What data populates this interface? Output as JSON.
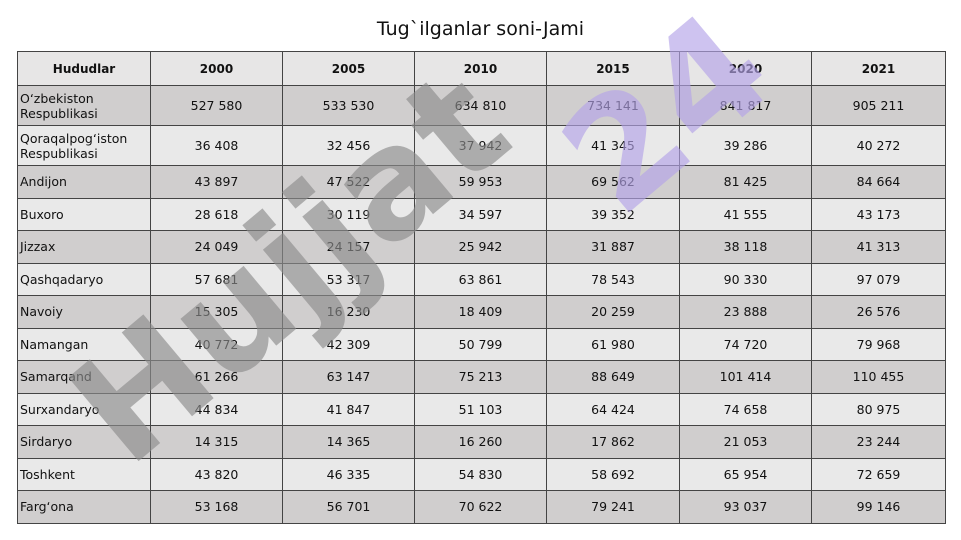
{
  "title": "Tug`ilganlar soni-Jami",
  "table": {
    "headers": [
      "Hududlar",
      "2000",
      "2005",
      "2010",
      "2015",
      "2020",
      "2021"
    ],
    "rows": [
      {
        "name": "O‘zbekiston Respublikasi",
        "values": [
          "527 580",
          "533 530",
          "634 810",
          "734 141",
          "841 817",
          "905 211"
        ]
      },
      {
        "name": "Qoraqalpog‘iston Respublikasi",
        "values": [
          "36 408",
          "32 456",
          "37 942",
          "41 345",
          "39 286",
          "40 272"
        ]
      },
      {
        "name": "Andijon",
        "values": [
          "43 897",
          "47 522",
          "59 953",
          "69 562",
          "81 425",
          "84 664"
        ]
      },
      {
        "name": "Buxoro",
        "values": [
          "28 618",
          "30 119",
          "34 597",
          "39 352",
          "41 555",
          "43 173"
        ]
      },
      {
        "name": "Jizzax",
        "values": [
          "24 049",
          "24 157",
          "25 942",
          "31 887",
          "38 118",
          "41 313"
        ]
      },
      {
        "name": "Qashqadaryo",
        "values": [
          "57 681",
          "53 317",
          "63 861",
          "78 543",
          "90 330",
          "97 079"
        ]
      },
      {
        "name": "Navoiy",
        "values": [
          "15 305",
          "16 230",
          "18 409",
          "20 259",
          "23 888",
          "26 576"
        ]
      },
      {
        "name": "Namangan",
        "values": [
          "40 772",
          "42 309",
          "50 799",
          "61 980",
          "74 720",
          "79 968"
        ]
      },
      {
        "name": "Samarqand",
        "values": [
          "61 266",
          "63 147",
          "75 213",
          "88 649",
          "101 414",
          "110 455"
        ]
      },
      {
        "name": "Surxandaryo",
        "values": [
          "44 834",
          "41 847",
          "51 103",
          "64 424",
          "74 658",
          "80 975"
        ]
      },
      {
        "name": "Sirdaryo",
        "values": [
          "14 315",
          "14 365",
          "16 260",
          "17 862",
          "21 053",
          "23 244"
        ]
      },
      {
        "name": "Toshkent",
        "values": [
          "43 820",
          "46 335",
          "54 830",
          "58 692",
          "65 954",
          "72 659"
        ]
      },
      {
        "name": "Farg‘ona",
        "values": [
          "53 168",
          "56 701",
          "70 622",
          "79 241",
          "93 037",
          "99 146"
        ]
      }
    ]
  },
  "watermark": {
    "text_gray": "Hujjat",
    "text_purple": "24",
    "color_gray": "#8c8c8c",
    "color_purple": "#b3a3e8"
  }
}
